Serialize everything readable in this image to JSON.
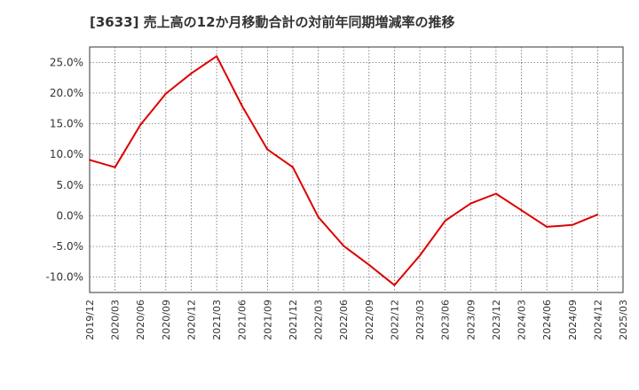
{
  "chart_data": {
    "type": "line",
    "title": "[3633]  売上高の12か月移動合計の対前年同期増減率の推移",
    "xlabel": "",
    "ylabel": "",
    "ylim": [
      -12.5,
      27.5
    ],
    "yticks": [
      -10,
      -5,
      0,
      5,
      10,
      15,
      20,
      25
    ],
    "ytick_labels": [
      "-10.0%",
      "-5.0%",
      "0.0%",
      "5.0%",
      "10.0%",
      "15.0%",
      "20.0%",
      "25.0%"
    ],
    "categories": [
      "2019/12",
      "2020/03",
      "2020/06",
      "2020/09",
      "2020/12",
      "2021/03",
      "2021/06",
      "2021/09",
      "2021/12",
      "2022/03",
      "2022/06",
      "2022/09",
      "2022/12",
      "2023/03",
      "2023/06",
      "2023/09",
      "2023/12",
      "2024/03",
      "2024/06",
      "2024/09",
      "2024/12",
      "2025/03"
    ],
    "grid": true,
    "series": [
      {
        "name": "対前年同期増減率",
        "color": "#dd0000",
        "values": [
          9.1,
          7.9,
          14.8,
          19.9,
          23.2,
          26.0,
          17.9,
          10.8,
          7.9,
          -0.2,
          -4.9,
          -8.0,
          -11.3,
          -6.5,
          -0.8,
          2.0,
          3.6,
          0.9,
          -1.8,
          -1.5,
          0.2,
          null
        ]
      }
    ]
  }
}
